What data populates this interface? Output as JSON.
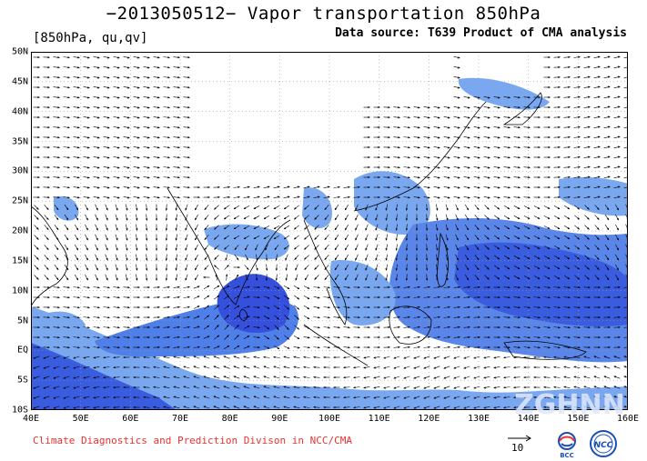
{
  "title": "−2013050512− Vapor transportation 850hPa",
  "units_label": "[850hPa, qu,qv]",
  "data_source": "Data source: T639 Product of CMA analysis",
  "credit": "Climate Diagnostics and Prediction Divison in NCC/CMA",
  "reference_vector": {
    "value": "10"
  },
  "logos": {
    "bcc": "BCC",
    "ncc": "NCC",
    "watermark": "ZGHNN"
  },
  "map": {
    "type": "vector-field",
    "lat_range": [
      -10,
      50
    ],
    "lon_range": [
      40,
      160
    ],
    "lat_labels": [
      "50N",
      "45N",
      "40N",
      "35N",
      "30N",
      "25N",
      "20N",
      "15N",
      "10N",
      "5N",
      "EQ",
      "5S",
      "10S"
    ],
    "lon_labels": [
      "40E",
      "50E",
      "60E",
      "70E",
      "80E",
      "90E",
      "100E",
      "110E",
      "120E",
      "130E",
      "140E",
      "150E",
      "160E"
    ],
    "colors": {
      "shade_light": "#7aa8f0",
      "shade_mid": "#4f7fe8",
      "shade_dark": "#2f50d8",
      "land_mask": "#ffffff",
      "arrows": "#000000",
      "coast": "#000000"
    }
  }
}
